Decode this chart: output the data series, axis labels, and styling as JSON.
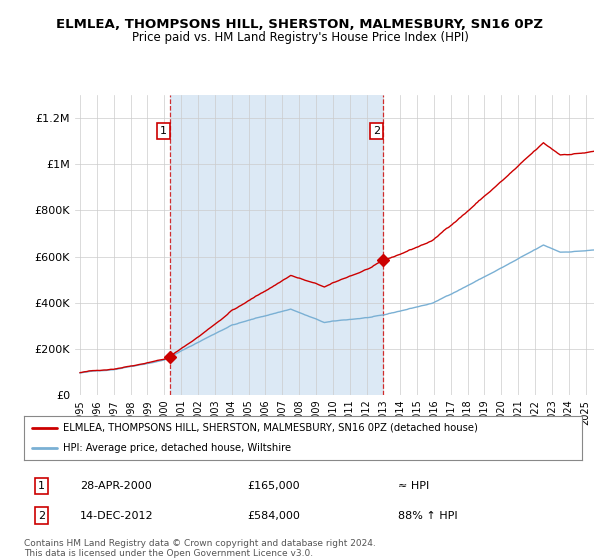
{
  "title": "ELMLEA, THOMPSONS HILL, SHERSTON, MALMESBURY, SN16 0PZ",
  "subtitle": "Price paid vs. HM Land Registry's House Price Index (HPI)",
  "legend_line1": "ELMLEA, THOMPSONS HILL, SHERSTON, MALMESBURY, SN16 0PZ (detached house)",
  "legend_line2": "HPI: Average price, detached house, Wiltshire",
  "annotation1_date": "28-APR-2000",
  "annotation1_price": "£165,000",
  "annotation1_hpi": "≈ HPI",
  "annotation2_date": "14-DEC-2012",
  "annotation2_price": "£584,000",
  "annotation2_hpi": "88% ↑ HPI",
  "footer": "Contains HM Land Registry data © Crown copyright and database right 2024.\nThis data is licensed under the Open Government Licence v3.0.",
  "sale1_year": 2000.32,
  "sale1_price": 165000,
  "sale2_year": 2012.96,
  "sale2_price": 584000,
  "house_color": "#cc0000",
  "hpi_color": "#7ab0d4",
  "shade_color": "#dce9f5",
  "grid_color": "#cccccc",
  "bg_color": "#eef3fa",
  "plot_bg": "#ffffff",
  "ylim": [
    0,
    1300000
  ],
  "xlim_start": 1994.7,
  "xlim_end": 2025.5
}
